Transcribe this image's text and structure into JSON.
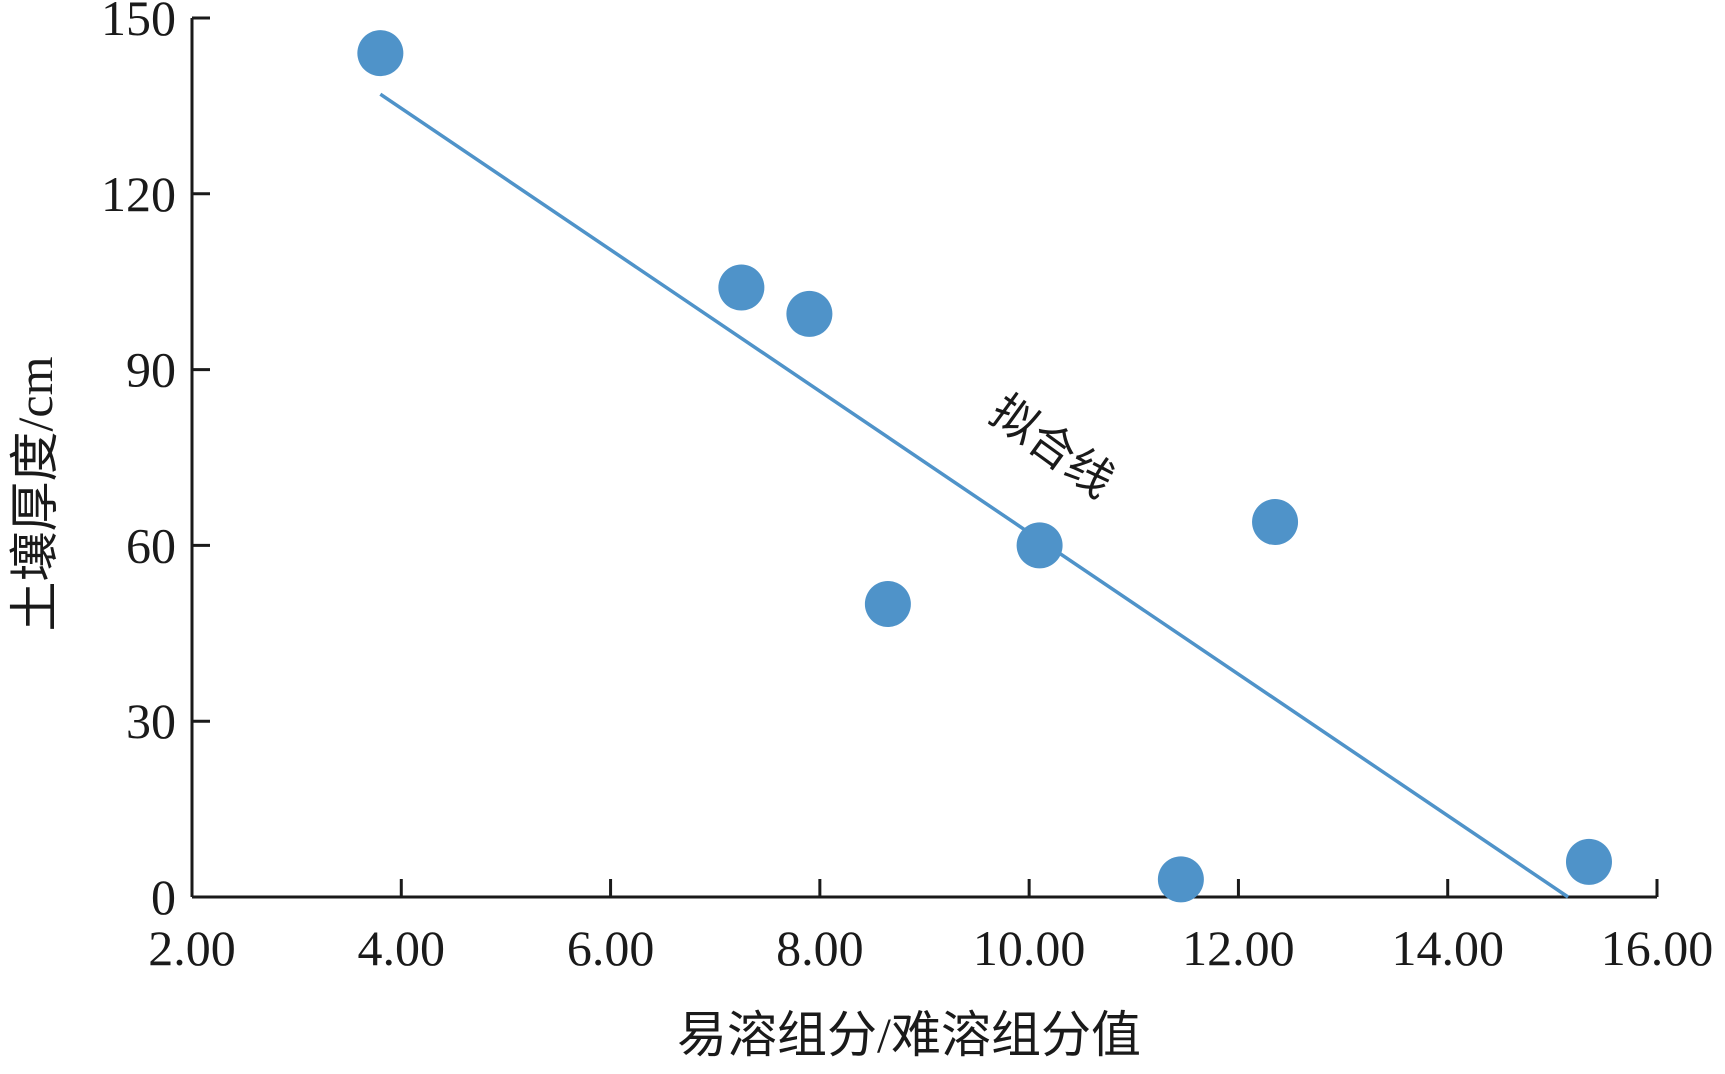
{
  "chart_data": {
    "type": "scatter",
    "title": "",
    "xlabel": "易溶组分/难溶组分值",
    "ylabel": "土壤厚度/cm",
    "xlim": [
      2.0,
      16.0
    ],
    "ylim": [
      0,
      150
    ],
    "x_ticks": [
      2.0,
      4.0,
      6.0,
      8.0,
      10.0,
      12.0,
      14.0,
      16.0
    ],
    "x_tick_labels": [
      "2.00",
      "4.00",
      "6.00",
      "8.00",
      "10.00",
      "12.00",
      "14.00",
      "16.00"
    ],
    "y_ticks": [
      0,
      30,
      60,
      90,
      120,
      150
    ],
    "y_tick_labels": [
      "0",
      "30",
      "60",
      "90",
      "120",
      "150"
    ],
    "grid": false,
    "series": [
      {
        "color": "#4f93c9",
        "points": [
          {
            "x": 3.8,
            "y": 144
          },
          {
            "x": 7.25,
            "y": 104
          },
          {
            "x": 7.9,
            "y": 99.5
          },
          {
            "x": 8.65,
            "y": 50
          },
          {
            "x": 10.1,
            "y": 60
          },
          {
            "x": 11.45,
            "y": 3
          },
          {
            "x": 12.35,
            "y": 64
          },
          {
            "x": 15.35,
            "y": 6
          }
        ]
      }
    ],
    "fit_line": {
      "label": "拟合线",
      "color": "#4f93c9",
      "x": [
        3.8,
        15.15
      ],
      "y": [
        137,
        0
      ]
    }
  }
}
